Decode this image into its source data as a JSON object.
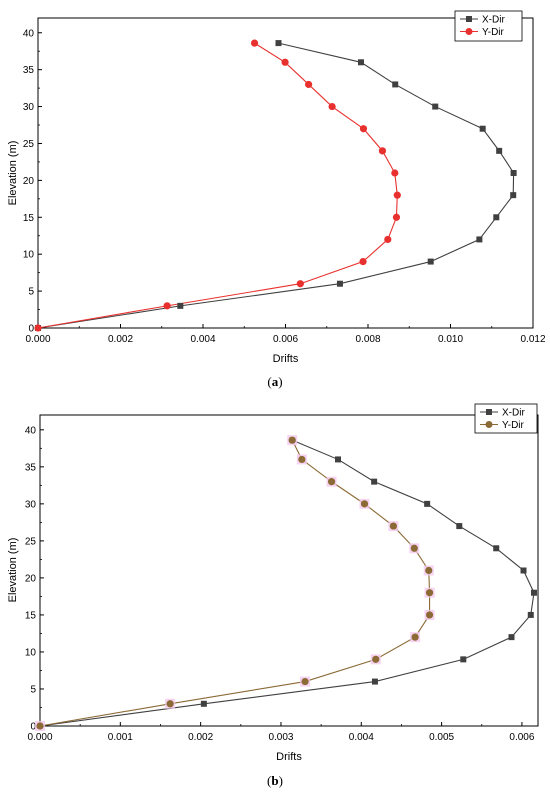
{
  "chart_data": [
    {
      "type": "line",
      "panel_label": "a",
      "xlabel": "Drifts",
      "ylabel": "Elevation (m)",
      "xlim": [
        0,
        0.012
      ],
      "ylim": [
        0,
        42
      ],
      "xticks": [
        "0.000",
        "0.002",
        "0.004",
        "0.006",
        "0.008",
        "0.010",
        "0.012"
      ],
      "yticks": [
        "0",
        "5",
        "10",
        "15",
        "20",
        "25",
        "30",
        "35",
        "40"
      ],
      "grid": false,
      "legend_position": "top-right",
      "series": [
        {
          "name": "X-Dir",
          "color": "#404040",
          "marker": "square",
          "x": [
            0,
            0.00345,
            0.00732,
            0.00952,
            0.0107,
            0.01111,
            0.01152,
            0.01153,
            0.01118,
            0.01078,
            0.00963,
            0.00866,
            0.00783,
            0.00583
          ],
          "y": [
            0,
            3,
            6,
            9,
            12,
            15,
            18,
            21,
            24,
            27,
            30,
            33,
            36,
            38.6
          ]
        },
        {
          "name": "Y-Dir",
          "color": "#e8312e",
          "marker": "circle",
          "x": [
            0,
            0.00313,
            0.00636,
            0.00788,
            0.00848,
            0.00869,
            0.00871,
            0.00865,
            0.00835,
            0.00789,
            0.00713,
            0.00656,
            0.00599,
            0.00525
          ],
          "y": [
            0,
            3,
            6,
            9,
            12,
            15,
            18,
            21,
            24,
            27,
            30,
            33,
            36,
            38.6
          ]
        }
      ]
    },
    {
      "type": "line",
      "panel_label": "b",
      "xlabel": "Drifts",
      "ylabel": "Elevation (m)",
      "xlim": [
        0,
        0.0062
      ],
      "ylim": [
        0,
        42
      ],
      "xticks": [
        "0.000",
        "0.001",
        "0.002",
        "0.003",
        "0.004",
        "0.005",
        "0.006"
      ],
      "yticks": [
        "0",
        "5",
        "10",
        "15",
        "20",
        "25",
        "30",
        "35",
        "40"
      ],
      "grid": false,
      "legend_position": "top-right",
      "series": [
        {
          "name": "X-Dir",
          "color": "#404040",
          "marker": "square",
          "x": [
            0,
            0.00204,
            0.00417,
            0.00527,
            0.00587,
            0.00611,
            0.00615,
            0.00602,
            0.00568,
            0.00522,
            0.00482,
            0.00416,
            0.00371,
            0.00314
          ],
          "y": [
            0,
            3,
            6,
            9,
            12,
            15,
            18,
            21,
            24,
            27,
            30,
            33,
            36,
            38.6
          ]
        },
        {
          "name": "Y-Dir",
          "color": "#8b6a36",
          "marker": "circle",
          "x": [
            0,
            0.00162,
            0.0033,
            0.00418,
            0.00467,
            0.00485,
            0.00485,
            0.00484,
            0.00466,
            0.0044,
            0.00404,
            0.00363,
            0.00326,
            0.00314
          ],
          "y": [
            0,
            3,
            6,
            9,
            12,
            15,
            18,
            21,
            24,
            27,
            30,
            33,
            36,
            38.6
          ]
        }
      ]
    }
  ]
}
